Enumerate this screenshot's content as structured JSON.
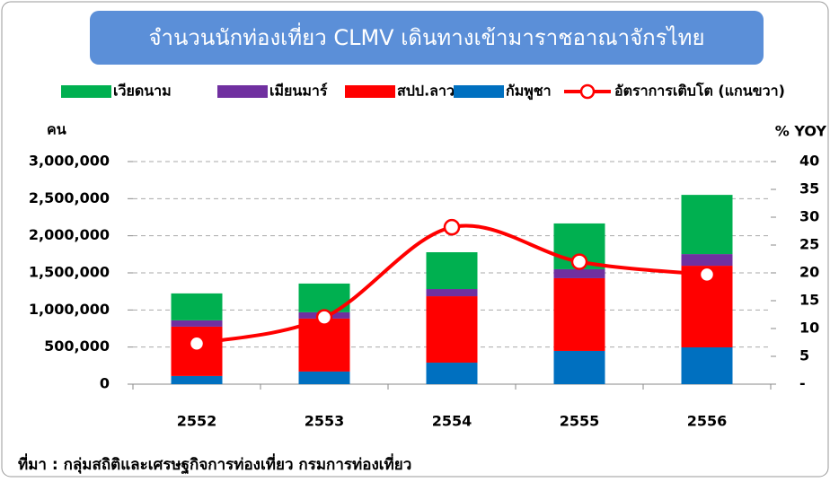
{
  "chart_data": {
    "type": "bar",
    "title": "จำนวนนักท่องเที่ยว CLMV เดินทางเข้ามาราชอาณาจักรไทย",
    "y_label": "คน",
    "y2_label": "% YOY",
    "source": "ที่มา : กลุ่มสถิติและเศรษฐกิจการท่องเที่ยว กรมการท่องเที่ยว",
    "categories": [
      "2552",
      "2553",
      "2554",
      "2555",
      "2556"
    ],
    "series": [
      {
        "name": "กัมพูชา",
        "color": "#0070c0",
        "values": [
          110000,
          170000,
          290000,
          448000,
          496000
        ]
      },
      {
        "name": "สปป.ลาว",
        "color": "#ff0000",
        "values": [
          665000,
          714000,
          895000,
          980000,
          1100000
        ]
      },
      {
        "name": "เมียนมาร์",
        "color": "#7030a0",
        "values": [
          85000,
          85000,
          97000,
          121000,
          157000
        ]
      },
      {
        "name": "เวียดนาม",
        "color": "#00b050",
        "values": [
          363000,
          387000,
          496000,
          617000,
          798000
        ]
      },
      {
        "name": "อัตราการเติบโต (แกนขวา)",
        "color": "#ff0000",
        "type": "line",
        "axis": "y2",
        "values": [
          7.3,
          12,
          28.2,
          22,
          19.7
        ]
      }
    ],
    "ylim": [
      0,
      3000000
    ],
    "yticks": [
      {
        "value": 0,
        "label": "0"
      },
      {
        "value": 500000,
        "label": "500,000"
      },
      {
        "value": 1000000,
        "label": "1,000,000"
      },
      {
        "value": 1500000,
        "label": "1,500,000"
      },
      {
        "value": 2000000,
        "label": "2,000,000"
      },
      {
        "value": 2500000,
        "label": "2,500,000"
      },
      {
        "value": 3000000,
        "label": "3,000,000"
      }
    ],
    "y2lim": [
      0,
      40
    ],
    "y2ticks": [
      {
        "value": 0,
        "label": "-"
      },
      5,
      10,
      15,
      20,
      25,
      30,
      35,
      40
    ],
    "grid": true
  }
}
